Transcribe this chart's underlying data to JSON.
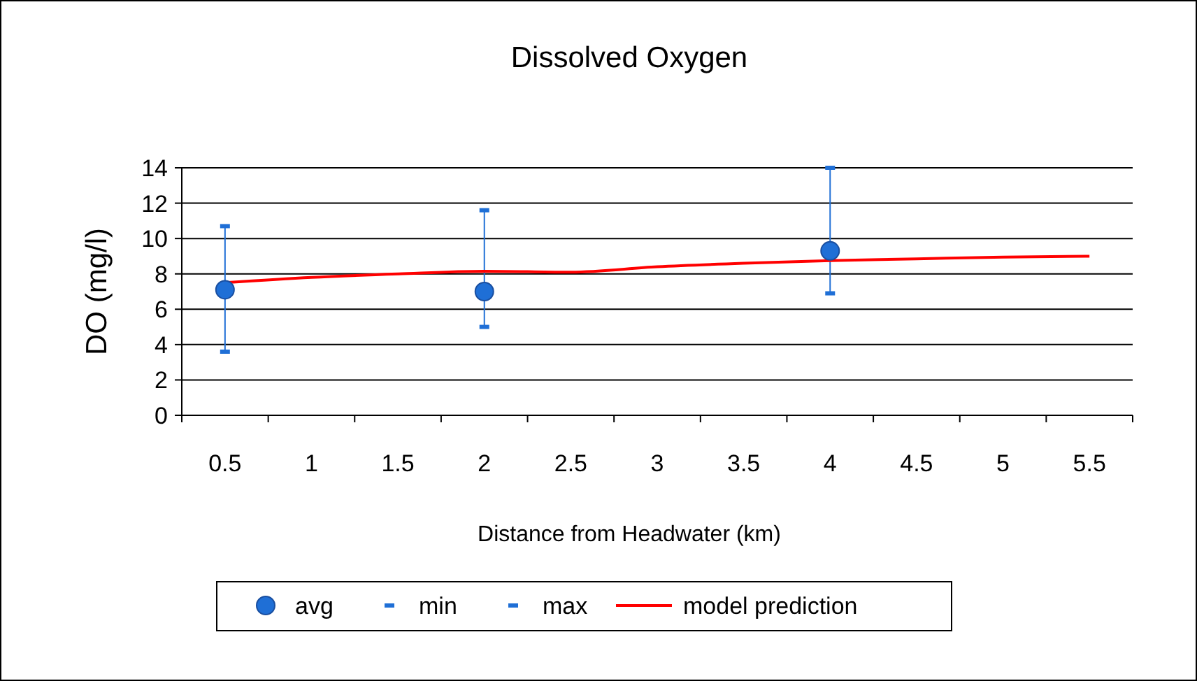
{
  "chart_data": {
    "type": "line",
    "title": "Dissolved Oxygen",
    "xlabel": "Distance from Headwater (km)",
    "ylabel": "DO  (mg/l)",
    "categories": [
      "0.5",
      "1",
      "1.5",
      "2",
      "2.5",
      "3",
      "3.5",
      "4",
      "4.5",
      "5",
      "5.5"
    ],
    "ylim": [
      0,
      14
    ],
    "yticks": [
      0,
      2,
      4,
      6,
      8,
      10,
      12,
      14
    ],
    "grid": "y",
    "legend": "bottom",
    "series": [
      {
        "color": "#1f6fd6",
        "marker": "none",
        "x": [
          "0.5",
          "0.5"
        ],
        "values": [
          3.6,
          10.7
        ]
      },
      {
        "color": "#1f6fd6",
        "marker": "none",
        "x": [
          "2",
          "2"
        ],
        "values": [
          5.0,
          11.6
        ]
      },
      {
        "color": "#1f6fd6",
        "marker": "none",
        "x": [
          "4",
          "4"
        ],
        "values": [
          6.9,
          14.0
        ]
      },
      {
        "name": "avg",
        "type": "scatter",
        "marker": "circle",
        "color": "#1f6fd6",
        "values": [
          7.1,
          null,
          null,
          7.0,
          null,
          null,
          null,
          9.3,
          null,
          null,
          null
        ]
      },
      {
        "name": "min",
        "type": "scatter",
        "marker": "square",
        "color": "#1f6fd6",
        "values": [
          3.6,
          null,
          null,
          5.0,
          null,
          null,
          null,
          6.9,
          null,
          null,
          null
        ]
      },
      {
        "name": "max",
        "type": "scatter",
        "marker": "square",
        "color": "#1f6fd6",
        "values": [
          10.7,
          null,
          null,
          11.6,
          null,
          null,
          null,
          14.0,
          null,
          null,
          null
        ]
      },
      {
        "name": "model prediction",
        "marker": "none",
        "line_style": "solid",
        "color": "#ff0000",
        "values": [
          7.5,
          7.8,
          8.0,
          8.15,
          8.1,
          8.4,
          8.6,
          8.75,
          8.85,
          8.95,
          9.0
        ]
      }
    ]
  }
}
